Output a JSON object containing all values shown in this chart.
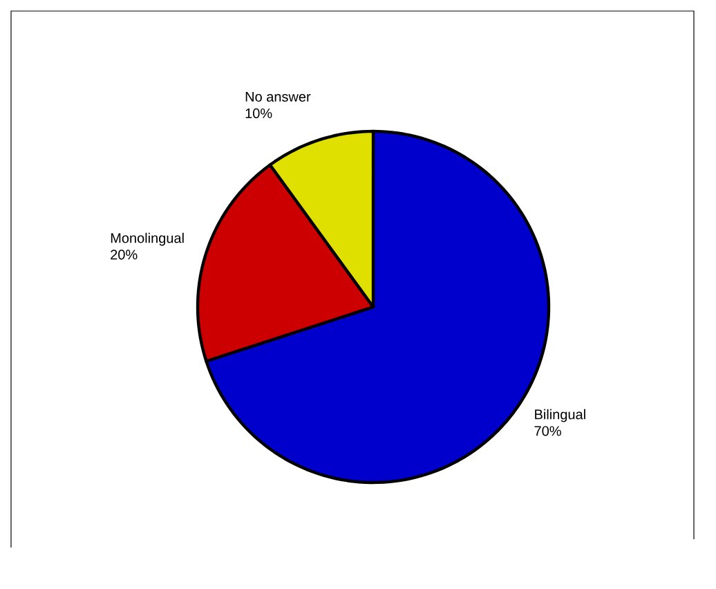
{
  "chart_data": {
    "type": "pie",
    "categories": [
      "Bilingual",
      "Monolingual",
      "No answer"
    ],
    "values": [
      70,
      20,
      10
    ],
    "value_labels": [
      "70%",
      "20%",
      "10%"
    ],
    "colors": [
      "#0000cc",
      "#cc0000",
      "#e0e000"
    ]
  }
}
